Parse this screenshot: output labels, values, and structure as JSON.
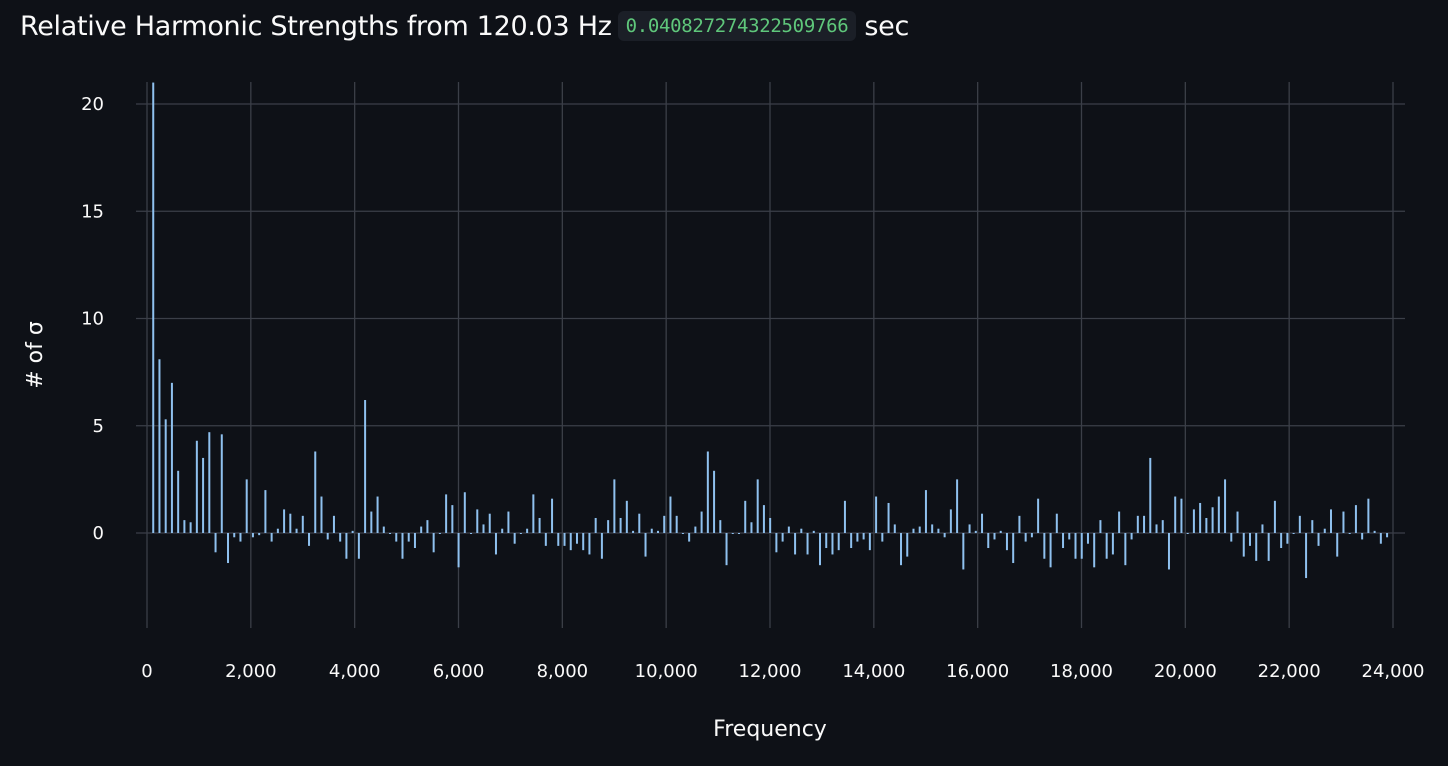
{
  "header": {
    "title_text": "Relative Harmonic Strengths from 120.03 Hz",
    "duration_value": "0.040827274322509766",
    "duration_unit": "sec"
  },
  "chart_data": {
    "type": "bar",
    "xlabel": "Frequency",
    "ylabel": "# of σ",
    "xlim": [
      0,
      24000
    ],
    "ylim": [
      -4.5,
      21
    ],
    "x_ticks": [
      0,
      2000,
      4000,
      6000,
      8000,
      10000,
      12000,
      14000,
      16000,
      18000,
      20000,
      22000,
      24000
    ],
    "x_tick_labels": [
      "0",
      "2,000",
      "4,000",
      "6,000",
      "8,000",
      "10,000",
      "12,000",
      "14,000",
      "16,000",
      "18,000",
      "20,000",
      "22,000",
      "24,000"
    ],
    "y_ticks": [
      0,
      5,
      10,
      15,
      20
    ],
    "y_tick_labels": [
      "0",
      "5",
      "10",
      "15",
      "20"
    ],
    "grid": true,
    "bar_color": "#8fc1ef",
    "fundamental_hz": 120.03,
    "values": [
      21,
      8.1,
      5.3,
      7.0,
      2.9,
      0.6,
      0.5,
      4.3,
      3.5,
      4.7,
      -0.9,
      4.6,
      -1.4,
      -0.2,
      -0.4,
      2.5,
      -0.2,
      -0.1,
      2.0,
      -0.4,
      0.2,
      1.1,
      0.9,
      0.2,
      0.8,
      -0.6,
      3.8,
      1.7,
      -0.3,
      0.8,
      -0.4,
      -1.2,
      0.1,
      -1.2,
      6.2,
      1.0,
      1.7,
      0.3,
      0.0,
      -0.4,
      -1.2,
      -0.4,
      -0.7,
      0.3,
      0.6,
      -0.9,
      0.0,
      1.8,
      1.3,
      -1.6,
      1.9,
      0.0,
      1.1,
      0.4,
      0.9,
      -1.0,
      0.2,
      1.0,
      -0.5,
      0.0,
      0.2,
      1.8,
      0.7,
      -0.6,
      1.6,
      -0.6,
      -0.6,
      -0.8,
      -0.5,
      -0.8,
      -1.0,
      0.7,
      -1.2,
      0.6,
      2.5,
      0.7,
      1.5,
      0.1,
      0.9,
      -1.1,
      0.2,
      0.1,
      0.8,
      1.7,
      0.8,
      0.0,
      -0.4,
      0.3,
      1.0,
      3.8,
      2.9,
      0.6,
      -1.5,
      0.0,
      0.0,
      1.5,
      0.5,
      2.5,
      1.3,
      0.7,
      -0.9,
      -0.4,
      0.3,
      -1.0,
      0.2,
      -1.0,
      0.1,
      -1.5,
      -0.7,
      -1.0,
      -0.8,
      1.5,
      -0.7,
      -0.4,
      -0.3,
      -0.8,
      1.7,
      -0.4,
      1.4,
      0.4,
      -1.5,
      -1.1,
      0.2,
      0.3,
      2.0,
      0.4,
      0.2,
      -0.2,
      1.1,
      2.5,
      -1.7,
      0.4,
      0.1,
      0.9,
      -0.7,
      -0.3,
      0.1,
      -0.8,
      -1.4,
      0.8,
      -0.4,
      -0.2,
      1.6,
      -1.2,
      -1.6,
      0.9,
      -0.7,
      -0.3,
      -1.2,
      -1.2,
      -0.5,
      -1.6,
      0.6,
      -1.2,
      -1.0,
      1.0,
      -1.5,
      -0.3,
      0.8,
      0.8,
      3.5,
      0.4,
      0.6,
      -1.7,
      1.7,
      1.6,
      0.0,
      1.1,
      1.4,
      0.7,
      1.2,
      1.7,
      2.5,
      -0.4,
      1.0,
      -1.1,
      -0.6,
      -1.3,
      0.4,
      -1.3,
      1.5,
      -0.7,
      -0.5,
      0.0,
      0.8,
      -2.1,
      0.6,
      -0.6,
      0.2,
      1.1,
      -1.1,
      1.0,
      0.0,
      1.3,
      -0.3,
      1.6,
      0.1,
      -0.5,
      -0.2
    ]
  }
}
